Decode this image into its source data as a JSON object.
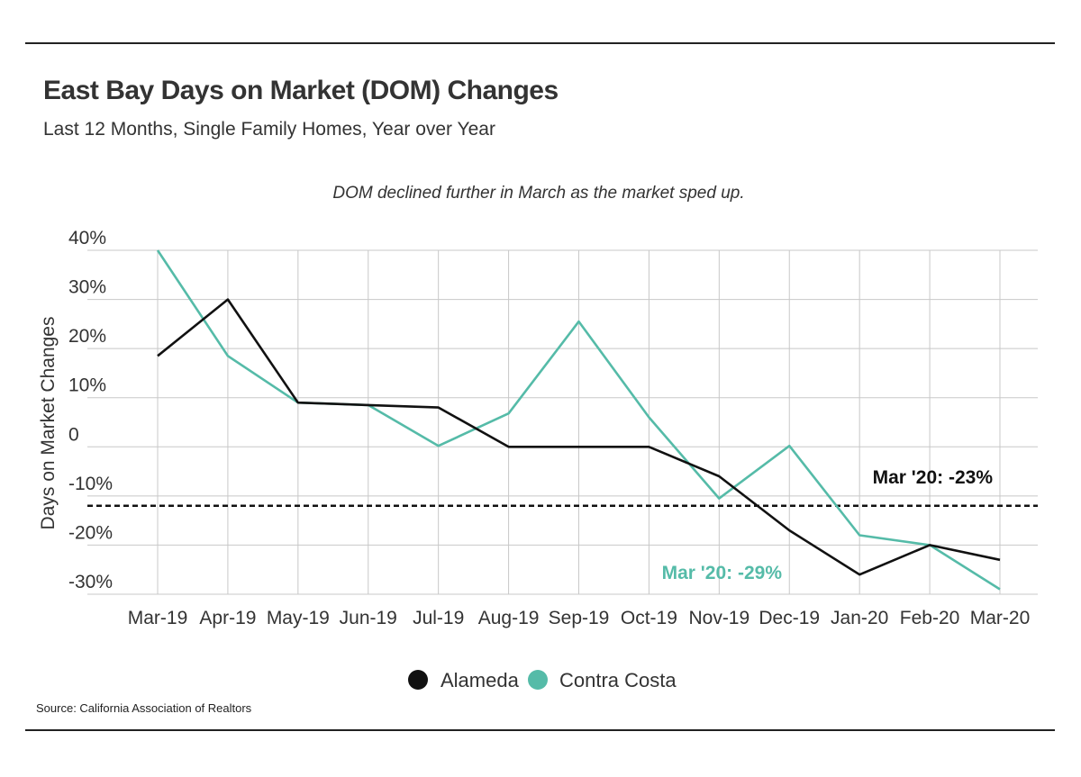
{
  "header": {
    "title": "East Bay Days on Market (DOM) Changes",
    "subtitle": "Last 12 Months, Single Family Homes, Year over Year"
  },
  "footer": {
    "source": "Source:  California Association of Realtors"
  },
  "chart_data": {
    "type": "line",
    "annotation_top": "DOM declined further in March as the market sped up.",
    "ylabel": "Days on Market Changes",
    "xlabel": "",
    "ylim": [
      -30,
      40
    ],
    "yticks": [
      40,
      30,
      20,
      10,
      0,
      -10,
      -20,
      -30
    ],
    "ytick_labels": [
      "40%",
      "30%",
      "20%",
      "10%",
      "0",
      "-10%",
      "-20%",
      "-30%"
    ],
    "categories": [
      "Mar-19",
      "Apr-19",
      "May-19",
      "Jun-19",
      "Jul-19",
      "Aug-19",
      "Sep-19",
      "Oct-19",
      "Nov-19",
      "Dec-19",
      "Jan-20",
      "Feb-20",
      "Mar-20"
    ],
    "series": [
      {
        "name": "Alameda",
        "color": "#111111",
        "values": [
          18.5,
          30,
          9,
          8.5,
          8,
          0,
          0,
          0,
          -6,
          -17,
          -26,
          -20,
          -23
        ]
      },
      {
        "name": "Contra Costa",
        "color": "#55bba8",
        "values": [
          40,
          18.5,
          9,
          8.5,
          0.2,
          6.8,
          25.5,
          6,
          -10.5,
          0.2,
          -18,
          -20,
          -29
        ]
      }
    ],
    "reference_line": {
      "value": -12,
      "style": "dashed",
      "color": "#111111"
    },
    "labels": [
      {
        "text": "Mar '20: -23%",
        "series": "Alameda",
        "color": "#111111"
      },
      {
        "text": "Mar '20: -29%",
        "series": "Contra Costa",
        "color": "#55bba8"
      }
    ],
    "grid": true,
    "legend": "bottom-center"
  }
}
